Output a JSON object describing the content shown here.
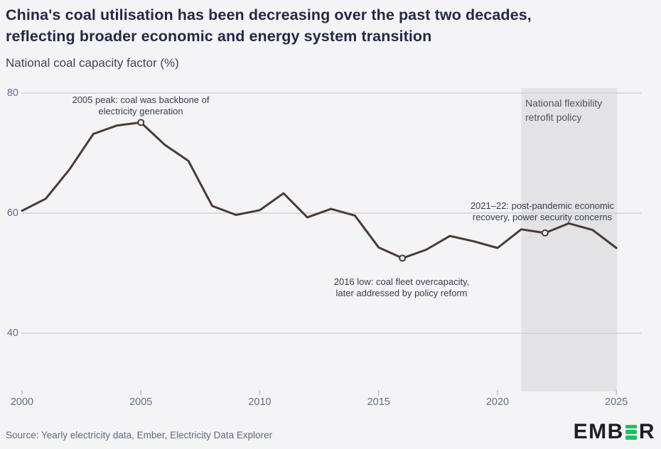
{
  "header": {
    "title_lines": [
      "China's coal utilisation has been decreasing over the past two decades,",
      "reflecting broader economic and energy system transition"
    ],
    "subtitle": "National coal capacity factor (%)"
  },
  "chart_data": {
    "type": "line",
    "title": "National coal capacity factor (%)",
    "x": [
      2000,
      2001,
      2002,
      2003,
      2004,
      2005,
      2006,
      2007,
      2008,
      2009,
      2010,
      2011,
      2012,
      2013,
      2014,
      2015,
      2016,
      2017,
      2018,
      2019,
      2020,
      2021,
      2022,
      2023,
      2024,
      2025
    ],
    "values": [
      60.4,
      62.4,
      67.3,
      73.2,
      74.6,
      75.1,
      71.4,
      68.7,
      61.2,
      59.7,
      60.5,
      63.3,
      59.3,
      60.7,
      59.6,
      54.3,
      52.5,
      53.9,
      56.2,
      55.3,
      54.2,
      57.3,
      56.7,
      58.3,
      57.2,
      54.2
    ],
    "ylim": [
      38,
      82
    ],
    "yticks": [
      40,
      60,
      80
    ],
    "xticks": [
      2000,
      2005,
      2010,
      2015,
      2020,
      2025
    ],
    "grid": "horizontal",
    "legend": "none",
    "line_color": "#4c3a33",
    "marker_years": [
      2005,
      2016,
      2022
    ],
    "policy_band": {
      "from_year": 2021,
      "to_year": 2025,
      "color": "#e3e3e6"
    },
    "annotations": [
      {
        "id": "peak-2005",
        "lines": [
          "2005 peak: coal was backbone of",
          "electricity generation"
        ]
      },
      {
        "id": "low-2016",
        "lines": [
          "2016 low: coal fleet overcapacity,",
          "later addressed by policy reform"
        ]
      },
      {
        "id": "recovery-2021",
        "lines": [
          "2021–22: post-pandemic economic",
          "recovery, power security concerns"
        ]
      },
      {
        "id": "policy-band",
        "lines": [
          "National flexibility",
          "retrofit policy"
        ]
      }
    ]
  },
  "colors": {
    "background": "#f4f4f7",
    "gridline": "#c6cad6",
    "tick": "#b9bfcc",
    "axis_label": "#626e87",
    "line": "#4c3a33",
    "band": "#e3e3e6",
    "logo_dark": "#1f1f22",
    "logo_green": "#1fc15f"
  },
  "footer": {
    "source": "Source: Yearly electricity data, Ember, Electricity Data Explorer",
    "logo_left": "EMB",
    "logo_right": "R"
  }
}
